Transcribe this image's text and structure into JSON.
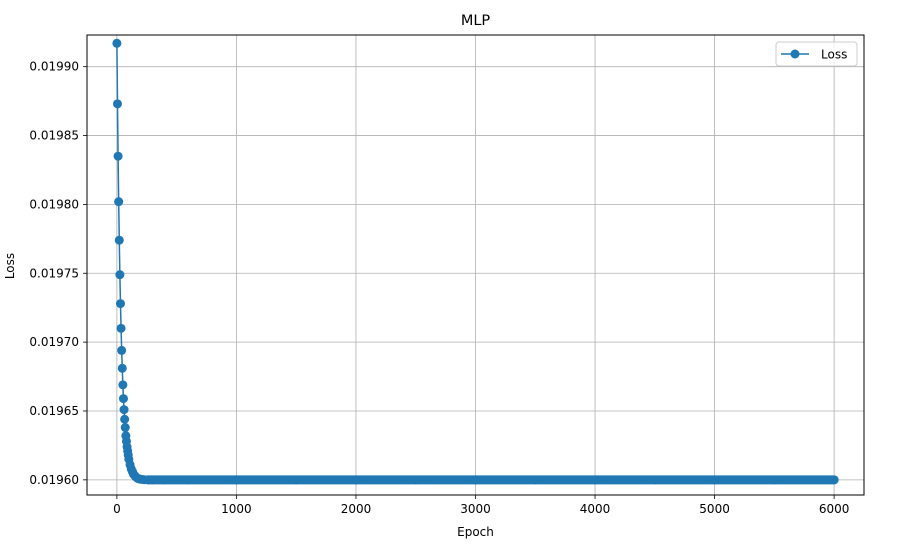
{
  "chart_data": {
    "type": "line",
    "title": "MLP",
    "xlabel": "Epoch",
    "ylabel": "Loss",
    "xlim": [
      -250,
      6250
    ],
    "ylim": [
      0.019589,
      0.019923
    ],
    "xticks": [
      0,
      1000,
      2000,
      3000,
      4000,
      5000,
      6000
    ],
    "xtick_labels": [
      "0",
      "1000",
      "2000",
      "3000",
      "4000",
      "5000",
      "6000"
    ],
    "yticks": [
      0.0196,
      0.01965,
      0.0197,
      0.01975,
      0.0198,
      0.01985,
      0.0199
    ],
    "ytick_labels": [
      "0.01960",
      "0.01965",
      "0.01970",
      "0.01975",
      "0.01980",
      "0.01985",
      "0.01990"
    ],
    "grid": true,
    "legend_position": "upper right",
    "color": "#1f77b4",
    "series": [
      {
        "name": "Loss",
        "marker": "circle",
        "x": [
          0,
          5,
          10,
          15,
          20,
          25,
          30,
          35,
          40,
          45,
          50,
          55,
          60,
          65,
          70,
          75,
          80,
          85,
          90,
          95,
          100,
          110,
          120,
          130,
          140,
          150,
          160,
          175,
          190,
          210,
          230,
          260,
          300,
          400,
          600,
          1000,
          1500,
          2000,
          2500,
          3000,
          3500,
          4000,
          4500,
          5000,
          5500,
          6000
        ],
        "y": [
          0.019917,
          0.019873,
          0.019835,
          0.019802,
          0.019774,
          0.019749,
          0.019728,
          0.01971,
          0.019694,
          0.019681,
          0.019669,
          0.019659,
          0.019651,
          0.019644,
          0.019638,
          0.019632,
          0.019628,
          0.019624,
          0.019621,
          0.019618,
          0.019615,
          0.019611,
          0.019608,
          0.019606,
          0.019604,
          0.019603,
          0.019602,
          0.019601,
          0.0196006,
          0.0196003,
          0.0196001,
          0.0196,
          0.0196,
          0.0196,
          0.0196,
          0.0196,
          0.0196,
          0.0196,
          0.0196,
          0.0196,
          0.0196,
          0.0196,
          0.0196,
          0.0196,
          0.0196,
          0.0196
        ]
      }
    ]
  }
}
